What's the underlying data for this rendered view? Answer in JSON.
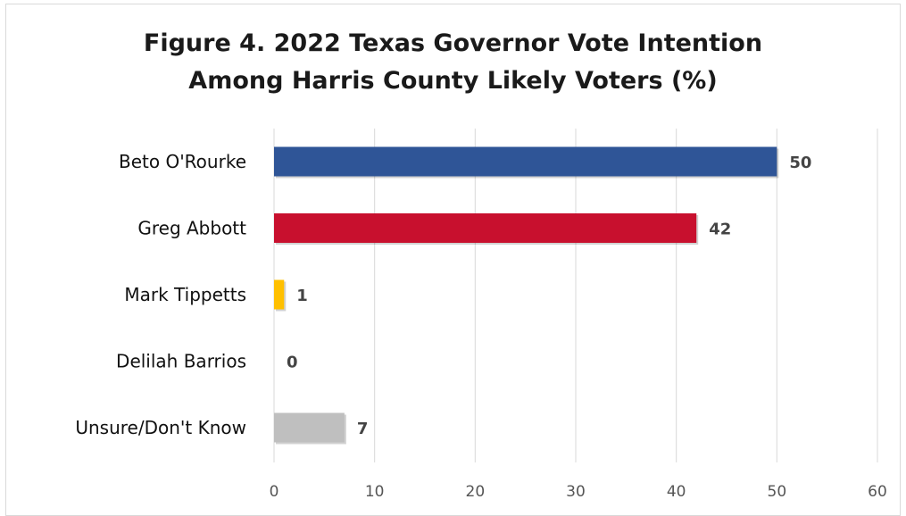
{
  "chart_data": {
    "type": "bar",
    "orientation": "horizontal",
    "title_lines": [
      "Figure 4. 2022 Texas Governor Vote Intention",
      "Among Harris County Likely Voters (%)"
    ],
    "categories": [
      "Beto O'Rourke",
      "Greg Abbott",
      "Mark Tippetts",
      "Delilah Barrios",
      "Unsure/Don't Know"
    ],
    "values": [
      50,
      42,
      1,
      0,
      7
    ],
    "data_labels": [
      "50",
      "42",
      "1",
      "0",
      "7"
    ],
    "colors": [
      "#2f5597",
      "#c8102e",
      "#ffc000",
      "#bfbfbf",
      "#bfbfbf"
    ],
    "xlim": [
      0,
      60
    ],
    "x_ticks": [
      0,
      10,
      20,
      30,
      40,
      50,
      60
    ],
    "x_tick_labels": [
      "0",
      "10",
      "20",
      "30",
      "40",
      "50",
      "60"
    ],
    "grid": true,
    "legend": false
  }
}
